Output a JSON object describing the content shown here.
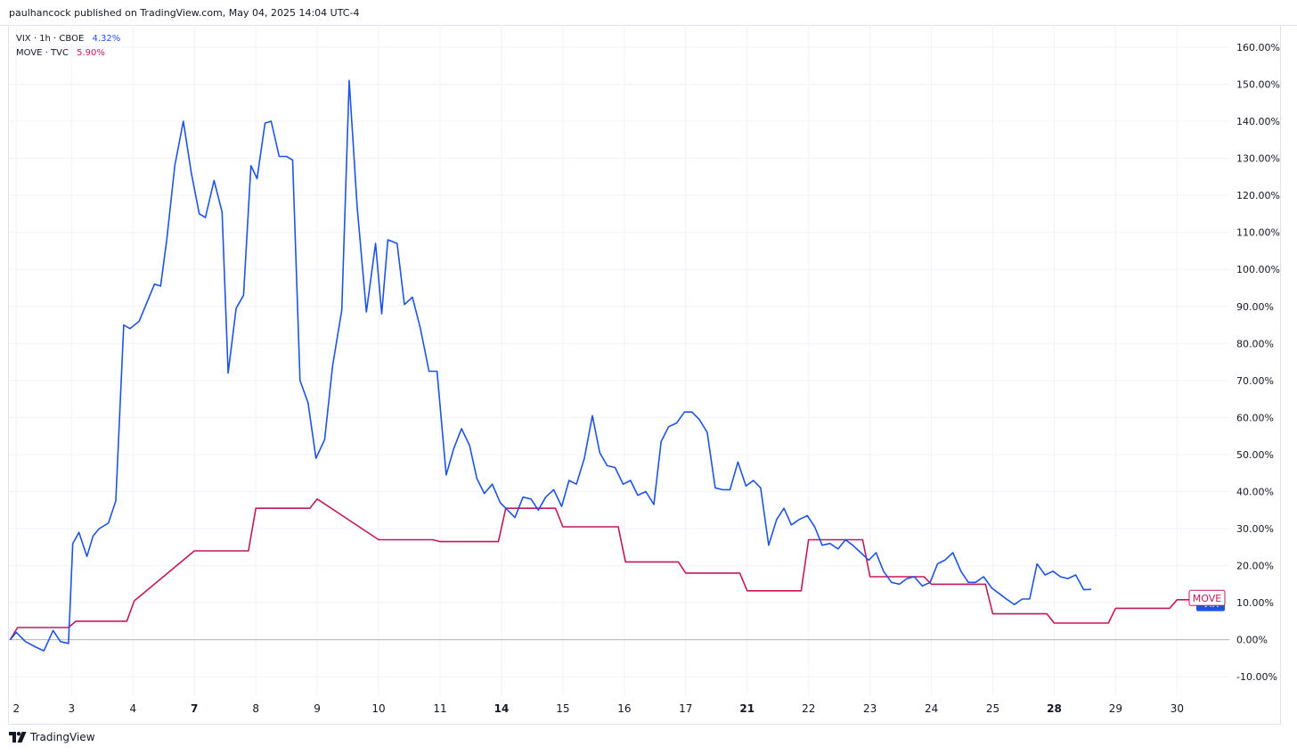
{
  "header": {
    "text": "paulhancock published on TradingView.com, May 04, 2025 14:04 UTC-4"
  },
  "legend": [
    {
      "name": "VIX · 1h · CBOE",
      "value": "4.32%",
      "color": "#1e53e5"
    },
    {
      "name": "MOVE · TVC",
      "value": "5.90%",
      "color": "#c2185b"
    }
  ],
  "footer": {
    "brand": "TradingView",
    "icon": "tradingview-logo-icon"
  },
  "chart_data": {
    "type": "line",
    "x_ticks": [
      {
        "label": "2",
        "x": 0.1,
        "bold": false
      },
      {
        "label": "3",
        "x": 1.0,
        "bold": false
      },
      {
        "label": "4",
        "x": 2.0,
        "bold": false
      },
      {
        "label": "7",
        "x": 3.0,
        "bold": true
      },
      {
        "label": "8",
        "x": 4.0,
        "bold": false
      },
      {
        "label": "9",
        "x": 5.0,
        "bold": false
      },
      {
        "label": "10",
        "x": 6.0,
        "bold": false
      },
      {
        "label": "11",
        "x": 7.0,
        "bold": false
      },
      {
        "label": "14",
        "x": 8.0,
        "bold": true
      },
      {
        "label": "15",
        "x": 9.0,
        "bold": false
      },
      {
        "label": "16",
        "x": 10.0,
        "bold": false
      },
      {
        "label": "17",
        "x": 11.0,
        "bold": false
      },
      {
        "label": "21",
        "x": 12.0,
        "bold": true
      },
      {
        "label": "22",
        "x": 13.0,
        "bold": false
      },
      {
        "label": "23",
        "x": 14.0,
        "bold": false
      },
      {
        "label": "24",
        "x": 15.0,
        "bold": false
      },
      {
        "label": "25",
        "x": 16.0,
        "bold": false
      },
      {
        "label": "28",
        "x": 17.0,
        "bold": true
      },
      {
        "label": "29",
        "x": 18.0,
        "bold": false
      },
      {
        "label": "30",
        "x": 19.0,
        "bold": false
      }
    ],
    "xlim": [
      -0.02,
      19.85
    ],
    "y_ticks": [
      -10,
      0,
      10,
      20,
      30,
      40,
      50,
      60,
      70,
      80,
      90,
      100,
      110,
      120,
      130,
      140,
      150,
      160
    ],
    "y_tick_labels": [
      "-10.00%",
      "0.00%",
      "10.00%",
      "20.00%",
      "30.00%",
      "40.00%",
      "50.00%",
      "60.00%",
      "70.00%",
      "80.00%",
      "90.00%",
      "100.00%",
      "110.00%",
      "120.00%",
      "130.00%",
      "140.00%",
      "150.00%",
      "160.00%"
    ],
    "ylim": [
      -15,
      166
    ],
    "grid": true,
    "baseline": 0,
    "series": [
      {
        "name": "VIX",
        "color": "#1e53e5",
        "last_label": "VIX",
        "points": [
          [
            0.0,
            0
          ],
          [
            0.1,
            2
          ],
          [
            0.25,
            -0.5
          ],
          [
            0.42,
            -2
          ],
          [
            0.55,
            -3
          ],
          [
            0.7,
            2.5
          ],
          [
            0.82,
            -0.5
          ],
          [
            0.95,
            -1
          ],
          [
            1.02,
            26
          ],
          [
            1.12,
            29
          ],
          [
            1.25,
            22.5
          ],
          [
            1.35,
            28
          ],
          [
            1.45,
            30
          ],
          [
            1.6,
            31.5
          ],
          [
            1.72,
            37.5
          ],
          [
            1.85,
            85
          ],
          [
            1.95,
            84
          ],
          [
            2.1,
            86
          ],
          [
            2.35,
            96
          ],
          [
            2.45,
            95.5
          ],
          [
            2.55,
            108
          ],
          [
            2.68,
            128
          ],
          [
            2.82,
            140
          ],
          [
            2.95,
            126
          ],
          [
            3.08,
            115
          ],
          [
            3.18,
            114
          ],
          [
            3.32,
            124
          ],
          [
            3.45,
            115.5
          ],
          [
            3.55,
            72
          ],
          [
            3.68,
            89.5
          ],
          [
            3.8,
            93
          ],
          [
            3.92,
            128
          ],
          [
            4.02,
            124.5
          ],
          [
            4.15,
            139.5
          ],
          [
            4.25,
            140
          ],
          [
            4.38,
            130.5
          ],
          [
            4.5,
            130.5
          ],
          [
            4.6,
            129.5
          ],
          [
            4.72,
            70
          ],
          [
            4.85,
            64
          ],
          [
            4.98,
            49
          ],
          [
            5.12,
            54
          ],
          [
            5.25,
            74
          ],
          [
            5.4,
            89
          ],
          [
            5.52,
            151
          ],
          [
            5.65,
            117
          ],
          [
            5.8,
            88.5
          ],
          [
            5.95,
            107
          ],
          [
            6.05,
            88
          ],
          [
            6.15,
            108
          ],
          [
            6.3,
            107
          ],
          [
            6.42,
            90.5
          ],
          [
            6.55,
            92.5
          ],
          [
            6.68,
            84
          ],
          [
            6.82,
            72.5
          ],
          [
            6.95,
            72.5
          ],
          [
            7.1,
            44.5
          ],
          [
            7.22,
            51.5
          ],
          [
            7.35,
            57
          ],
          [
            7.48,
            52.5
          ],
          [
            7.6,
            43.5
          ],
          [
            7.72,
            39.5
          ],
          [
            7.85,
            42
          ],
          [
            7.98,
            37
          ],
          [
            8.1,
            35
          ],
          [
            8.22,
            33
          ],
          [
            8.35,
            38.5
          ],
          [
            8.48,
            38
          ],
          [
            8.6,
            35
          ],
          [
            8.72,
            38.5
          ],
          [
            8.85,
            40.5
          ],
          [
            8.98,
            36
          ],
          [
            9.1,
            43
          ],
          [
            9.22,
            42
          ],
          [
            9.35,
            49
          ],
          [
            9.48,
            60.5
          ],
          [
            9.6,
            50.5
          ],
          [
            9.72,
            47
          ],
          [
            9.85,
            46.5
          ],
          [
            9.98,
            42
          ],
          [
            10.1,
            43
          ],
          [
            10.22,
            39
          ],
          [
            10.35,
            40
          ],
          [
            10.48,
            36.5
          ],
          [
            10.6,
            53.5
          ],
          [
            10.72,
            57.5
          ],
          [
            10.85,
            58.5
          ],
          [
            10.98,
            61.5
          ],
          [
            11.1,
            61.5
          ],
          [
            11.22,
            59.5
          ],
          [
            11.35,
            56
          ],
          [
            11.48,
            41
          ],
          [
            11.6,
            40.5
          ],
          [
            11.72,
            40.5
          ],
          [
            11.85,
            48
          ],
          [
            11.98,
            41.5
          ],
          [
            12.1,
            43
          ],
          [
            12.22,
            41
          ],
          [
            12.35,
            25.5
          ],
          [
            12.48,
            32.5
          ],
          [
            12.6,
            35.5
          ],
          [
            12.72,
            31
          ],
          [
            12.85,
            32.5
          ],
          [
            12.98,
            33.5
          ],
          [
            13.1,
            30.5
          ],
          [
            13.22,
            25.5
          ],
          [
            13.35,
            26
          ],
          [
            13.48,
            24.5
          ],
          [
            13.6,
            27
          ],
          [
            13.72,
            25.5
          ],
          [
            13.85,
            23.5
          ],
          [
            13.98,
            21.5
          ],
          [
            14.1,
            23.5
          ],
          [
            14.22,
            18.5
          ],
          [
            14.35,
            15.5
          ],
          [
            14.48,
            15
          ],
          [
            14.6,
            16.5
          ],
          [
            14.72,
            17
          ],
          [
            14.85,
            14.5
          ],
          [
            14.98,
            15.5
          ],
          [
            15.1,
            20.5
          ],
          [
            15.22,
            21.5
          ],
          [
            15.35,
            23.5
          ],
          [
            15.48,
            18.5
          ],
          [
            15.6,
            15.5
          ],
          [
            15.72,
            15.5
          ],
          [
            15.85,
            17
          ],
          [
            15.98,
            14
          ],
          [
            16.1,
            12.5
          ],
          [
            16.22,
            11
          ],
          [
            16.35,
            9.5
          ],
          [
            16.48,
            11
          ],
          [
            16.6,
            11
          ],
          [
            16.72,
            20.5
          ],
          [
            16.85,
            17.5
          ],
          [
            16.98,
            18.5
          ],
          [
            17.1,
            17
          ],
          [
            17.22,
            16.5
          ],
          [
            17.35,
            17.5
          ],
          [
            17.48,
            13.5
          ],
          [
            17.6,
            13.6
          ]
        ]
      },
      {
        "name": "MOVE",
        "color": "#c2185b",
        "last_label": "MOVE",
        "points": [
          [
            0.0,
            0
          ],
          [
            0.12,
            3.3
          ],
          [
            0.95,
            3.3
          ],
          [
            1.07,
            5
          ],
          [
            1.9,
            5
          ],
          [
            2.02,
            10.5
          ],
          [
            3.0,
            24
          ],
          [
            3.88,
            24
          ],
          [
            4.0,
            35.5
          ],
          [
            4.88,
            35.5
          ],
          [
            5.0,
            38
          ],
          [
            6.0,
            27
          ],
          [
            6.88,
            27
          ],
          [
            7.0,
            26.5
          ],
          [
            7.95,
            26.5
          ],
          [
            8.07,
            35.5
          ],
          [
            8.88,
            35.5
          ],
          [
            9.0,
            30.5
          ],
          [
            9.9,
            30.5
          ],
          [
            10.02,
            21
          ],
          [
            10.88,
            21
          ],
          [
            11.0,
            18
          ],
          [
            11.88,
            18
          ],
          [
            12.0,
            13.2
          ],
          [
            12.88,
            13.2
          ],
          [
            13.0,
            27
          ],
          [
            13.88,
            27
          ],
          [
            14.0,
            17
          ],
          [
            14.88,
            17
          ],
          [
            15.0,
            15
          ],
          [
            15.88,
            15
          ],
          [
            16.0,
            7
          ],
          [
            16.88,
            7
          ],
          [
            17.0,
            4.5
          ],
          [
            17.88,
            4.5
          ],
          [
            18.0,
            8.5
          ],
          [
            18.88,
            8.5
          ],
          [
            19.0,
            10.8
          ],
          [
            19.3,
            10.8
          ]
        ]
      }
    ]
  }
}
